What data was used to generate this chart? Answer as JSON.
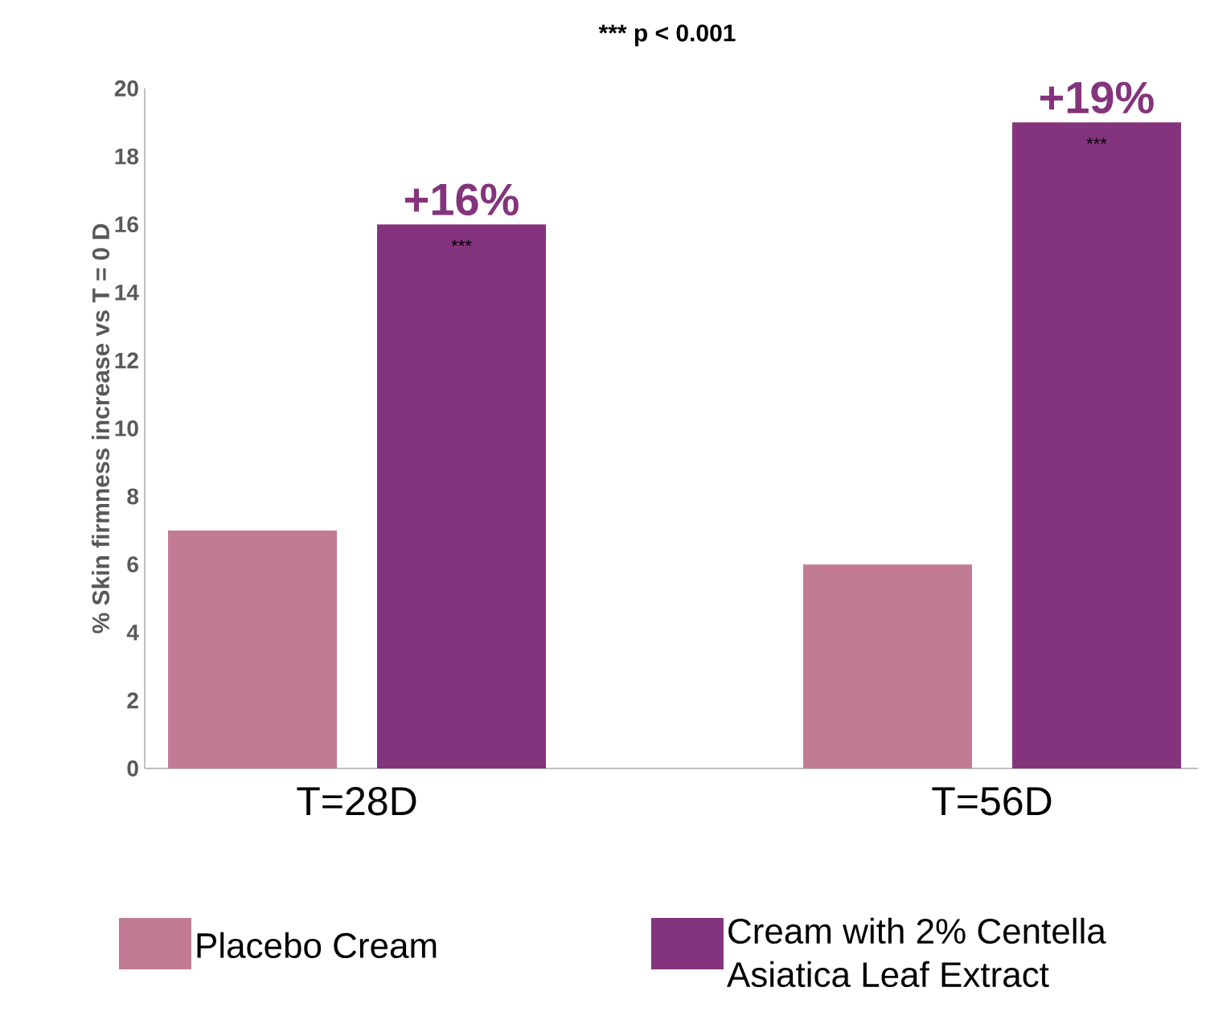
{
  "chart_data": {
    "type": "bar",
    "ylabel": "% Skin firmness increase vs T = 0 D",
    "categories": [
      "T=28D",
      "T=56D"
    ],
    "series": [
      {
        "name": "Placebo Cream",
        "color": "#c27b95",
        "values": [
          7,
          6
        ]
      },
      {
        "name": "Cream with 2% Centella Asiatica Leaf Extract",
        "color": "#84347c",
        "values": [
          16,
          19
        ],
        "value_labels": [
          "+16%",
          "+19%"
        ]
      }
    ],
    "ylim": [
      0,
      20
    ],
    "yticks": [
      0,
      2,
      4,
      6,
      8,
      10,
      12,
      14,
      16,
      18,
      20
    ],
    "grid": false,
    "legend": "bottom",
    "annotations": [
      "*** p < 0.001",
      "***",
      "***"
    ]
  }
}
